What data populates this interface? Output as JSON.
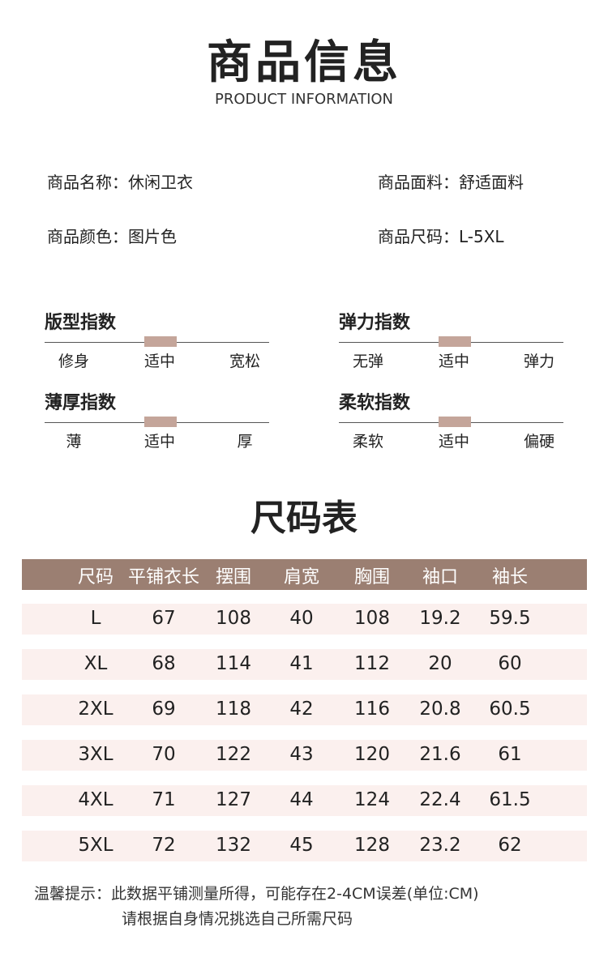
{
  "header": {
    "title": "商品信息",
    "subtitle": "PRODUCT INFORMATION"
  },
  "info": [
    "商品名称：休闲卫衣",
    "商品面料：舒适面料",
    "商品颜色：图片色",
    "商品尺码：L-5XL"
  ],
  "indices": [
    {
      "title": "版型指数",
      "options": [
        "修身",
        "适中",
        "宽松"
      ]
    },
    {
      "title": "弹力指数",
      "options": [
        "无弹",
        "适中",
        "弹力"
      ]
    },
    {
      "title": "薄厚指数",
      "options": [
        "薄",
        "适中",
        "厚"
      ]
    },
    {
      "title": "柔软指数",
      "options": [
        "柔软",
        "适中",
        "偏硬"
      ]
    }
  ],
  "size_table": {
    "title": "尺码表",
    "columns": [
      "尺码",
      "平铺衣长",
      "摆围",
      "肩宽",
      "胸围",
      "袖口",
      "袖长"
    ],
    "rows": [
      [
        "L",
        67,
        108,
        40,
        108,
        19.2,
        59.5
      ],
      [
        "XL",
        68,
        114,
        41,
        112,
        20,
        60
      ],
      [
        "2XL",
        69,
        118,
        42,
        116,
        20.8,
        60.5
      ],
      [
        "3XL",
        70,
        122,
        43,
        120,
        21.6,
        61
      ],
      [
        "4XL",
        71,
        127,
        44,
        124,
        22.4,
        61.5
      ],
      [
        "5XL",
        72,
        132,
        45,
        128,
        23.2,
        62
      ]
    ]
  },
  "note": [
    "温馨提示：此数据平铺测量所得，可能存在2-4CM误差(单位:CM)",
    "请根据自身情况挑选自己所需尺码"
  ]
}
